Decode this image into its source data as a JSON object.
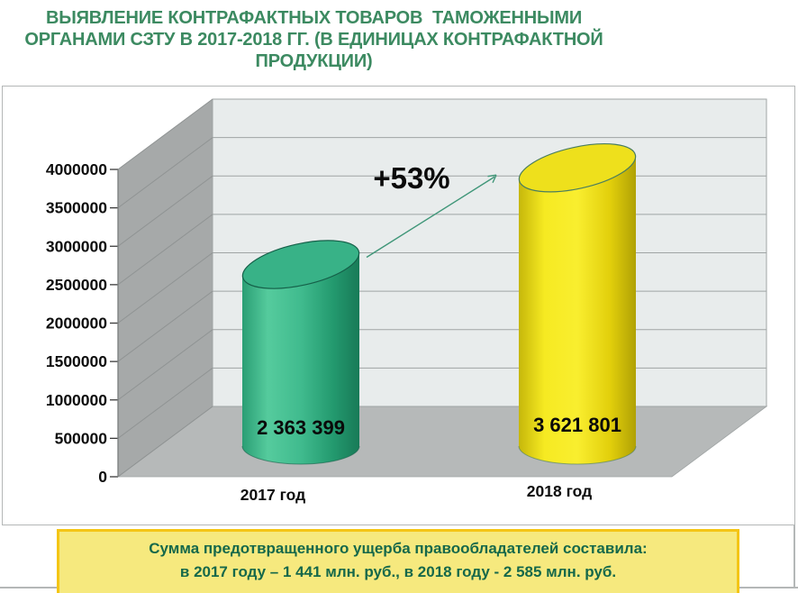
{
  "title": {
    "lines": [
      "ВЫЯВЛЕНИЕ КОНТРАФАКТНЫХ ТОВАРОВ  ТАМОЖЕННЫМИ",
      "ОРГАНАМИ СЗТУ В 2017-2018 ГГ. (В ЕДИНИЦАХ КОНТРАФАКТНОЙ",
      "ПРОДУКЦИИ)"
    ],
    "color": "#3c8a61"
  },
  "chart_data": {
    "type": "bar",
    "style": "3d-cylinder",
    "categories": [
      "2017 год",
      "2018 год"
    ],
    "values": [
      2363399,
      3621801
    ],
    "value_labels": [
      "2 363 399",
      "3 621 801"
    ],
    "annotation": "+53%",
    "annotation_arrow_color": "#3f9678",
    "ylim": [
      0,
      4000000
    ],
    "ytick_step": 500000,
    "yticks": [
      "4000000",
      "3500000",
      "3000000",
      "2500000",
      "2000000",
      "1500000",
      "1000000",
      "500000",
      "0"
    ],
    "grid": true,
    "legend": false,
    "bar_gradients": [
      [
        "#2a9e74",
        "#55cb9d",
        "#40bb8e",
        "#23996e",
        "#187a57"
      ],
      [
        "#c6b70a",
        "#f6ea22",
        "#f9ee2f",
        "#e2cf0b",
        "#b0a105"
      ]
    ],
    "top_colors": [
      "#38b287",
      "#eee01c"
    ],
    "outline_colors": [
      "#156049",
      "#4a7d5f"
    ],
    "wall_colors": {
      "back": "#e8ecec",
      "side": "#a6a9a9",
      "floor": "#b6b9b9",
      "gridline": "#9fa4a4"
    },
    "text_color": "#0d0d0d"
  },
  "footer_box": {
    "lines": [
      "Сумма предотвращенного ущерба правообладателей составила:",
      "в 2017 году – 1 441 млн. руб., в 2018 году - 2 585 млн. руб."
    ],
    "bg_color": "#f6e97e",
    "border_color": "#f4c516",
    "text_color": "#15684a"
  }
}
